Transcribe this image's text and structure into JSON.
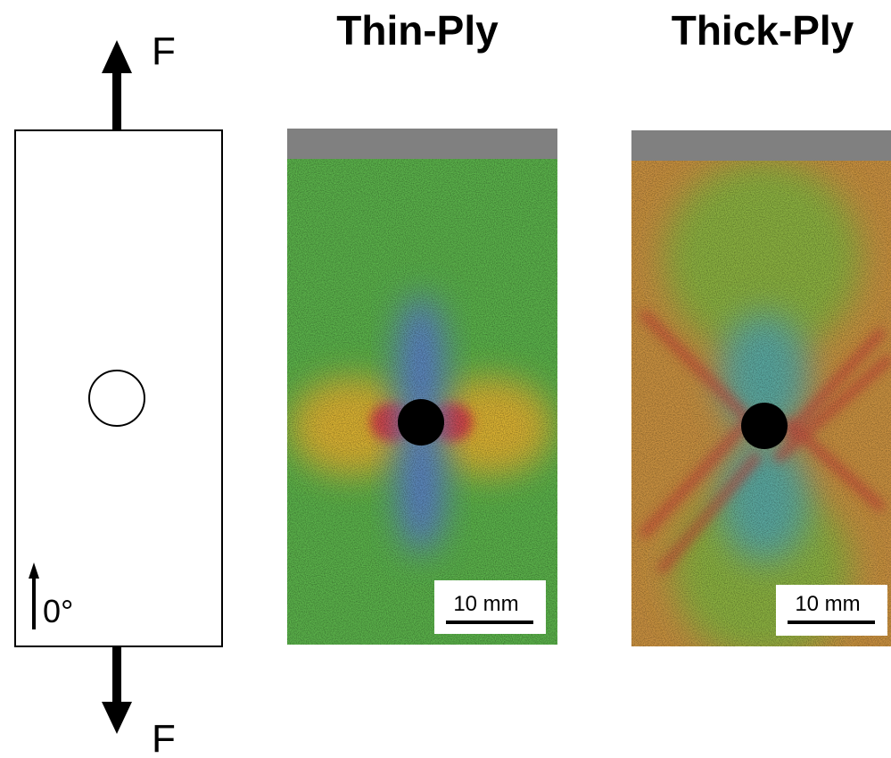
{
  "specimen": {
    "force_top": "F",
    "force_bottom": "F",
    "orientation": "0°"
  },
  "panels": [
    {
      "title": "Thin-Ply",
      "scale_bar": "10 mm"
    },
    {
      "title": "Thick-Ply",
      "scale_bar": "10 mm"
    }
  ]
}
